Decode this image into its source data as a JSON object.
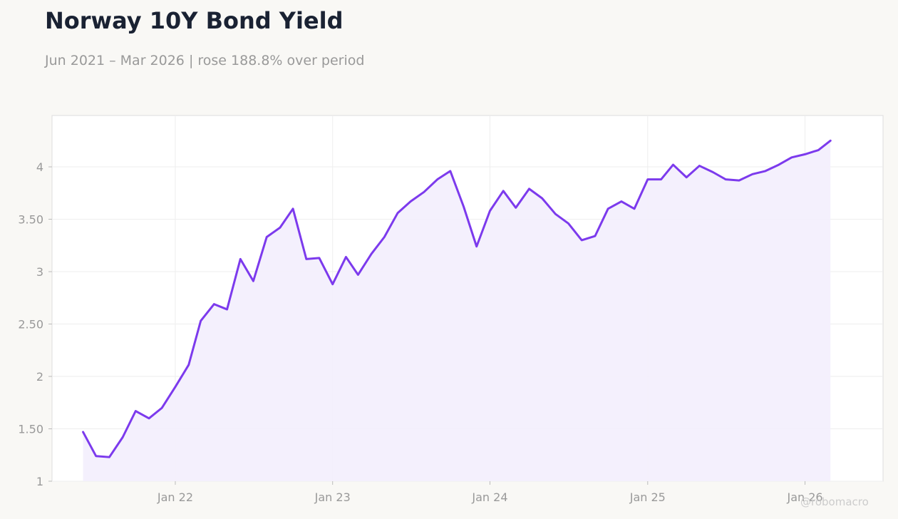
{
  "header": {
    "title": "Norway 10Y Bond Yield",
    "subtitle": "Jun 2021 – Mar 2026 | rose 188.8% over period"
  },
  "watermark": "@robomacro",
  "colors": {
    "line": "#7c3aed",
    "fill": "#f3eefd",
    "grid": "#eeeeee",
    "axis": "#dddddd",
    "background": "#f9f8f5",
    "plot_background": "#ffffff"
  },
  "chart_data": {
    "type": "area",
    "title": "Norway 10Y Bond Yield",
    "xlabel": "",
    "ylabel": "",
    "x_ticks": [
      {
        "date": "2022-01-01",
        "label": "Jan 22"
      },
      {
        "date": "2023-01-01",
        "label": "Jan 23"
      },
      {
        "date": "2024-01-01",
        "label": "Jan 24"
      },
      {
        "date": "2025-01-01",
        "label": "Jan 25"
      },
      {
        "date": "2026-01-01",
        "label": "Jan 26"
      }
    ],
    "y_ticks": [
      {
        "value": 1,
        "label": "1"
      },
      {
        "value": 1.5,
        "label": "1.50"
      },
      {
        "value": 2,
        "label": "2"
      },
      {
        "value": 2.5,
        "label": "2.50"
      },
      {
        "value": 3,
        "label": "3"
      },
      {
        "value": 3.5,
        "label": "3.50"
      },
      {
        "value": 4,
        "label": "4"
      }
    ],
    "xlim": [
      "2021-03-21",
      "2026-07-01"
    ],
    "ylim": [
      1,
      4.49
    ],
    "grid": true,
    "legend": "none",
    "series": [
      {
        "dates": [
          "2021-06-01",
          "2021-07-01",
          "2021-08-01",
          "2021-09-01",
          "2021-10-01",
          "2021-11-01",
          "2021-12-01",
          "2022-01-01",
          "2022-02-01",
          "2022-03-01",
          "2022-04-01",
          "2022-05-01",
          "2022-06-01",
          "2022-07-01",
          "2022-08-01",
          "2022-09-01",
          "2022-10-01",
          "2022-11-01",
          "2022-12-01",
          "2023-01-01",
          "2023-02-01",
          "2023-03-01",
          "2023-04-01",
          "2023-05-01",
          "2023-06-01",
          "2023-07-01",
          "2023-08-01",
          "2023-09-01",
          "2023-10-01",
          "2023-11-01",
          "2023-12-01",
          "2024-01-01",
          "2024-02-01",
          "2024-03-01",
          "2024-04-01",
          "2024-05-01",
          "2024-06-01",
          "2024-07-01",
          "2024-08-01",
          "2024-09-01",
          "2024-10-01",
          "2024-11-01",
          "2024-12-01",
          "2025-01-01",
          "2025-02-01",
          "2025-03-01",
          "2025-04-01",
          "2025-05-01",
          "2025-06-01",
          "2025-07-01",
          "2025-08-01",
          "2025-09-01",
          "2025-10-01",
          "2025-11-01",
          "2025-12-01",
          "2026-01-01",
          "2026-02-01",
          "2026-03-01"
        ],
        "values": [
          1.47,
          1.24,
          1.23,
          1.42,
          1.67,
          1.6,
          1.7,
          1.9,
          2.11,
          2.53,
          2.69,
          2.64,
          3.12,
          2.91,
          3.33,
          3.42,
          3.6,
          3.12,
          3.13,
          2.88,
          3.14,
          2.97,
          3.17,
          3.33,
          3.56,
          3.67,
          3.76,
          3.88,
          3.96,
          3.62,
          3.24,
          3.58,
          3.77,
          3.61,
          3.79,
          3.7,
          3.55,
          3.46,
          3.3,
          3.34,
          3.6,
          3.67,
          3.6,
          3.88,
          3.88,
          4.02,
          3.9,
          4.01,
          3.95,
          3.88,
          3.87,
          3.93,
          3.96,
          4.02,
          4.09,
          4.12,
          4.16,
          4.25
        ]
      }
    ]
  }
}
